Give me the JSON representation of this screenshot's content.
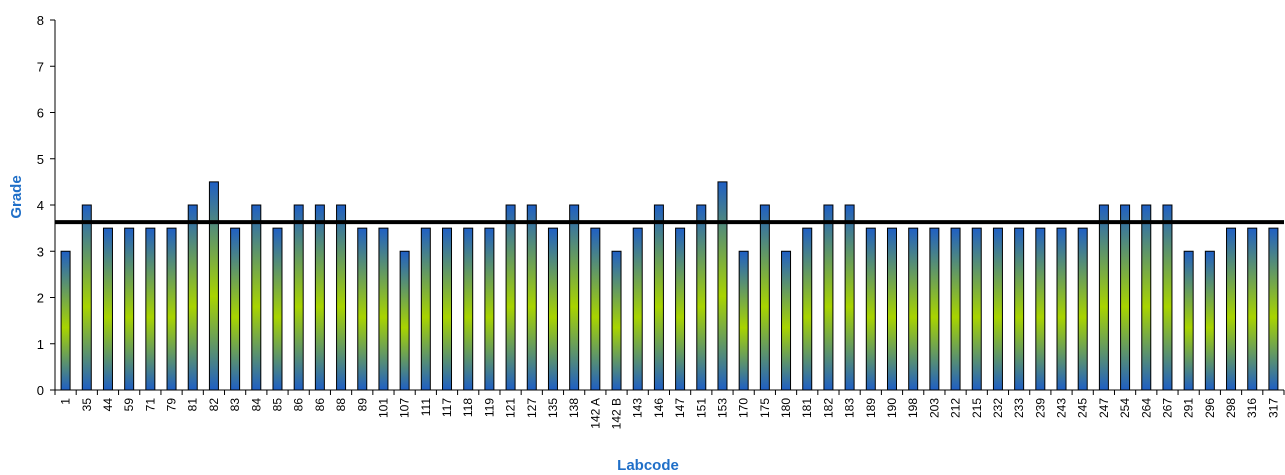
{
  "chart_data": {
    "type": "bar",
    "xlabel": "Labcode",
    "ylabel": "Grade",
    "ylim": [
      0,
      8
    ],
    "yticks": [
      0,
      1,
      2,
      3,
      4,
      5,
      6,
      7,
      8
    ],
    "grid": false,
    "categories": [
      "1",
      "35",
      "44",
      "59",
      "71",
      "79",
      "81",
      "82",
      "83",
      "84",
      "85",
      "86",
      "86",
      "88",
      "89",
      "101",
      "107",
      "111",
      "117",
      "118",
      "119",
      "121",
      "127",
      "135",
      "138",
      "142 A",
      "142 B",
      "143",
      "146",
      "147",
      "151",
      "153",
      "170",
      "175",
      "180",
      "181",
      "182",
      "183",
      "189",
      "190",
      "198",
      "203",
      "212",
      "215",
      "232",
      "233",
      "239",
      "243",
      "245",
      "247",
      "254",
      "264",
      "267",
      "291",
      "296",
      "298",
      "316",
      "317"
    ],
    "series": [
      {
        "values": [
          3,
          4,
          3.5,
          3.5,
          3.5,
          3.5,
          4,
          4.5,
          3.5,
          4,
          3.5,
          4,
          4,
          4,
          3.5,
          3.5,
          3,
          3.5,
          3.5,
          3.5,
          3.5,
          4,
          4,
          3.5,
          4,
          3.5,
          3,
          3.5,
          4,
          3.5,
          4,
          4.5,
          3,
          4,
          3,
          3.5,
          4,
          4,
          3.5,
          3.5,
          3.5,
          3.5,
          3.5,
          3.5,
          3.5,
          3.5,
          3.5,
          3.5,
          3.5,
          4,
          4,
          4,
          4,
          3,
          3,
          3.5,
          3.5,
          3.5
        ]
      }
    ],
    "reference_line": {
      "value": 3.63
    },
    "colors": {
      "bar_top": "#1f5fc4",
      "bar_mid": "#a8d400",
      "bar_outline": "#000000",
      "axis_title": "#1f6fc8",
      "reference": "#000000"
    }
  }
}
